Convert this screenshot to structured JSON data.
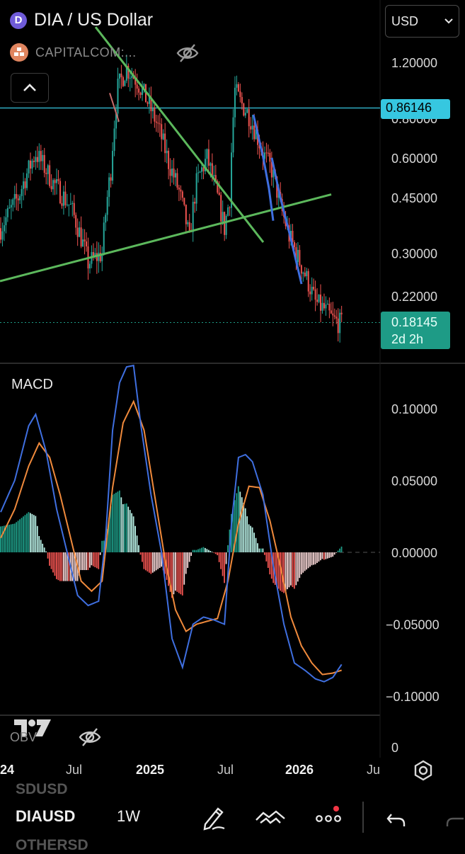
{
  "header": {
    "coin_logo_letter": "D",
    "title": "DIA / US Dollar",
    "source": "CAPITALCOM:...",
    "currency": "USD"
  },
  "chart_data": [
    {
      "type": "candlestick",
      "title": "DIA / US Dollar",
      "scale": "log",
      "y_ticks": [
        "1.20000",
        "0.80000",
        "0.60000",
        "0.45000",
        "0.30000",
        "0.22000"
      ],
      "y_tick_values": [
        1.2,
        0.8,
        0.6,
        0.45,
        0.3,
        0.22
      ],
      "ylim": [
        0.16,
        1.35
      ],
      "horizontal_line": {
        "value": 0.86146,
        "label": "0.86146",
        "color": "#36c7e0"
      },
      "last_price": {
        "value": 0.18145,
        "label": "0.18145",
        "countdown": "2d 2h",
        "color": "#1e9b86"
      },
      "up_color": "#26a69a",
      "down_color": "#ef5350",
      "trendline_color": "#5cb85c",
      "channel_color": "#3f6fe0",
      "x_ticks": [
        "24",
        "Jul",
        "2025",
        "Jul",
        "2026",
        "Ju"
      ],
      "price_path": [
        [
          0,
          0.36
        ],
        [
          10,
          0.45
        ],
        [
          20,
          0.62
        ],
        [
          30,
          0.5
        ],
        [
          40,
          0.42
        ],
        [
          50,
          0.28
        ],
        [
          58,
          0.3
        ],
        [
          63,
          0.55
        ],
        [
          67,
          1.0
        ],
        [
          72,
          1.15
        ],
        [
          78,
          1.05
        ],
        [
          84,
          0.9
        ],
        [
          90,
          0.75
        ],
        [
          96,
          0.58
        ],
        [
          102,
          0.47
        ],
        [
          108,
          0.33
        ],
        [
          112,
          0.5
        ],
        [
          118,
          0.6
        ],
        [
          124,
          0.45
        ],
        [
          128,
          0.36
        ],
        [
          131,
          0.45
        ],
        [
          134,
          0.98
        ],
        [
          137,
          0.9
        ],
        [
          142,
          0.82
        ],
        [
          146,
          0.72
        ],
        [
          150,
          0.62
        ],
        [
          155,
          0.55
        ],
        [
          160,
          0.42
        ],
        [
          165,
          0.34
        ],
        [
          170,
          0.29
        ],
        [
          175,
          0.25
        ],
        [
          180,
          0.21
        ],
        [
          185,
          0.2
        ],
        [
          190,
          0.185
        ],
        [
          195,
          0.18
        ]
      ]
    },
    {
      "type": "macd",
      "title": "MACD",
      "y_ticks": [
        "0.10000",
        "0.05000",
        "0.00000",
        "−0.05000",
        "−0.10000"
      ],
      "y_tick_values": [
        0.1,
        0.05,
        0.0,
        -0.05,
        -0.1
      ],
      "ylim": [
        -0.12,
        0.13
      ],
      "macd_color": "#3f6fe0",
      "signal_color": "#f08a3c",
      "hist_pos_colors": [
        "#1e9b86",
        "#b8f0e6"
      ],
      "hist_neg_colors": [
        "#ef5350",
        "#f8d6d6"
      ],
      "macd_path": [
        [
          0,
          0.028
        ],
        [
          8,
          0.05
        ],
        [
          16,
          0.088
        ],
        [
          20,
          0.096
        ],
        [
          26,
          0.07
        ],
        [
          32,
          0.03
        ],
        [
          38,
          0.0
        ],
        [
          44,
          -0.03
        ],
        [
          50,
          -0.037
        ],
        [
          56,
          -0.034
        ],
        [
          60,
          0.01
        ],
        [
          64,
          0.085
        ],
        [
          68,
          0.118
        ],
        [
          72,
          0.129
        ],
        [
          76,
          0.13
        ],
        [
          80,
          0.09
        ],
        [
          86,
          0.04
        ],
        [
          92,
          0.0
        ],
        [
          98,
          -0.06
        ],
        [
          104,
          -0.08
        ],
        [
          110,
          -0.05
        ],
        [
          116,
          -0.045
        ],
        [
          122,
          -0.047
        ],
        [
          128,
          -0.05
        ],
        [
          132,
          0.02
        ],
        [
          136,
          0.066
        ],
        [
          140,
          0.068
        ],
        [
          144,
          0.063
        ],
        [
          150,
          0.04
        ],
        [
          156,
          -0.01
        ],
        [
          162,
          -0.05
        ],
        [
          168,
          -0.077
        ],
        [
          174,
          -0.082
        ],
        [
          180,
          -0.088
        ],
        [
          185,
          -0.09
        ],
        [
          190,
          -0.087
        ],
        [
          195,
          -0.078
        ]
      ],
      "signal_path": [
        [
          0,
          0.01
        ],
        [
          8,
          0.03
        ],
        [
          16,
          0.06
        ],
        [
          22,
          0.076
        ],
        [
          28,
          0.066
        ],
        [
          34,
          0.04
        ],
        [
          40,
          0.01
        ],
        [
          46,
          -0.02
        ],
        [
          52,
          -0.027
        ],
        [
          58,
          -0.02
        ],
        [
          64,
          0.045
        ],
        [
          70,
          0.09
        ],
        [
          76,
          0.105
        ],
        [
          82,
          0.085
        ],
        [
          88,
          0.04
        ],
        [
          94,
          -0.005
        ],
        [
          100,
          -0.04
        ],
        [
          106,
          -0.055
        ],
        [
          112,
          -0.05
        ],
        [
          118,
          -0.048
        ],
        [
          124,
          -0.046
        ],
        [
          130,
          -0.02
        ],
        [
          136,
          0.02
        ],
        [
          142,
          0.046
        ],
        [
          148,
          0.045
        ],
        [
          154,
          0.022
        ],
        [
          160,
          -0.01
        ],
        [
          166,
          -0.045
        ],
        [
          172,
          -0.065
        ],
        [
          178,
          -0.077
        ],
        [
          184,
          -0.085
        ],
        [
          190,
          -0.084
        ],
        [
          195,
          -0.082
        ]
      ]
    },
    {
      "type": "line",
      "title": "OBV",
      "y_ticks": [
        "0"
      ]
    }
  ],
  "bottom_toolbar": {
    "symbol": "DIAUSD",
    "interval": "1W",
    "ghost_above": "SDUSD",
    "ghost_below": "OTHERSD"
  },
  "icons": {
    "eye_off": "eye-slash-icon",
    "collapse": "chevron-up-icon",
    "dropdown": "chevron-down-icon",
    "settings": "gear-icon",
    "draw": "pencil-icon",
    "templates": "handshake-icon",
    "more": "more-dots-icon",
    "undo": "undo-arrow-icon"
  }
}
